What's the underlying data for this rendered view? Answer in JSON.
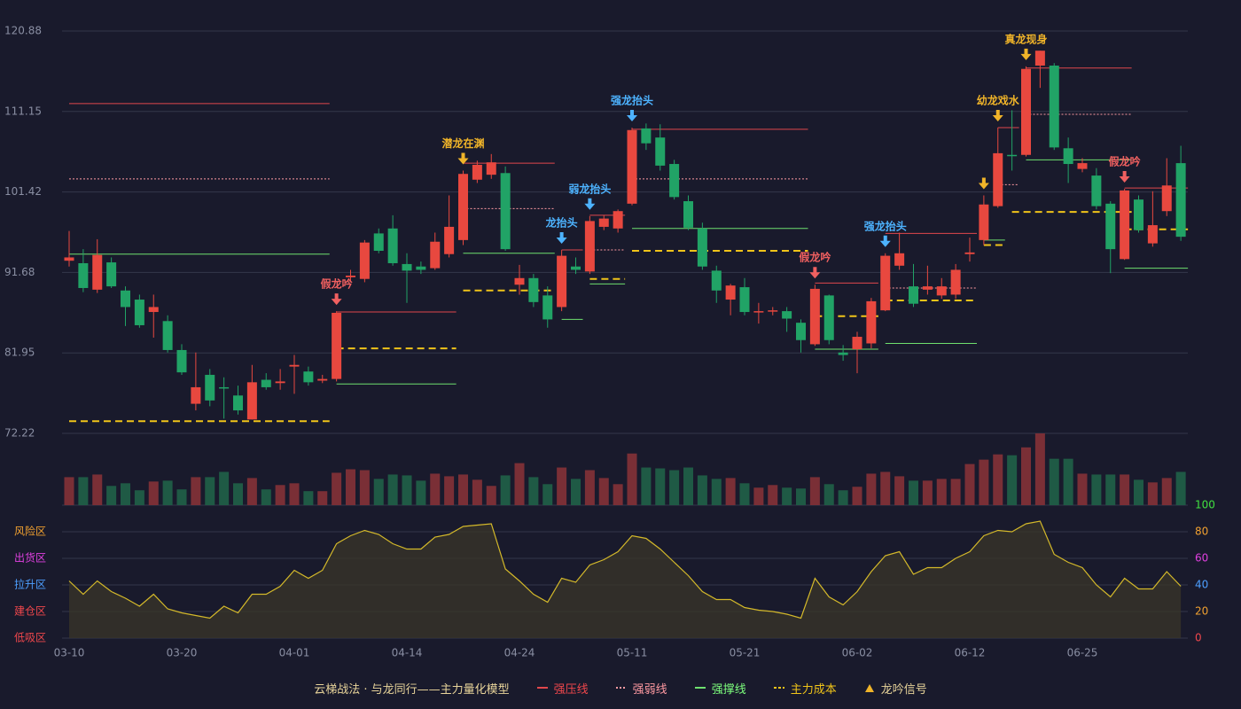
{
  "chart_data": {
    "type": "candlestick",
    "categories": [
      "03-10",
      null,
      null,
      null,
      null,
      null,
      null,
      null,
      "03-20",
      null,
      null,
      null,
      null,
      null,
      null,
      null,
      "04-01",
      null,
      null,
      null,
      null,
      null,
      null,
      null,
      "04-14",
      null,
      null,
      null,
      null,
      null,
      null,
      null,
      "04-24",
      null,
      null,
      null,
      null,
      null,
      null,
      null,
      "05-11",
      null,
      null,
      null,
      null,
      null,
      null,
      null,
      "05-21",
      null,
      null,
      null,
      null,
      null,
      null,
      null,
      "06-02",
      null,
      null,
      null,
      null,
      null,
      null,
      null,
      "06-12",
      null,
      null,
      null,
      null,
      null,
      null,
      null,
      "06-25",
      null,
      null,
      null,
      null,
      null,
      null,
      null
    ],
    "open": [
      93.1,
      92.8,
      89.6,
      92.9,
      89.5,
      88.4,
      86.9,
      85.8,
      82.3,
      75.8,
      79.3,
      77.8,
      76.8,
      73.9,
      78.7,
      78.3,
      80.3,
      79.7,
      78.6,
      78.8,
      91.1,
      90.9,
      96.4,
      97.0,
      92.7,
      92.4,
      92.2,
      93.9,
      95.6,
      102.9,
      103.5,
      103.7,
      90.2,
      91.0,
      88.9,
      87.5,
      92.4,
      91.8,
      97.2,
      97.0,
      100.0,
      109.1,
      108.0,
      104.8,
      100.3,
      97.0,
      91.9,
      88.4,
      89.9,
      86.9,
      87.0,
      87.0,
      85.6,
      83.0,
      88.9,
      82.0,
      82.4,
      83.1,
      87.1,
      92.5,
      90.0,
      89.6,
      88.9,
      89.0,
      93.9,
      95.6,
      99.7,
      105.9,
      105.9,
      116.7,
      116.7,
      106.7,
      104.2,
      103.4,
      100.0,
      93.3,
      100.5,
      95.2,
      99.1,
      104.9
    ],
    "high": [
      96.7,
      94.5,
      95.7,
      93.5,
      90.0,
      89.0,
      89.0,
      86.5,
      83.0,
      82.0,
      80.0,
      79.0,
      78.0,
      80.5,
      79.5,
      80.0,
      81.7,
      80.3,
      79.3,
      87.0,
      92.0,
      95.6,
      97.0,
      98.6,
      94.0,
      93.0,
      96.5,
      101.0,
      104.0,
      105.2,
      106.0,
      104.5,
      92.6,
      91.5,
      90.0,
      94.4,
      93.5,
      98.5,
      98.6,
      99.3,
      109.2,
      109.7,
      109.6,
      105.3,
      101.0,
      97.7,
      92.5,
      90.3,
      91.0,
      88.0,
      87.5,
      87.5,
      86.0,
      90.2,
      89.0,
      82.9,
      84.5,
      88.6,
      94.0,
      96.5,
      92.7,
      92.5,
      91.0,
      92.7,
      95.9,
      101.0,
      109.2,
      111.3,
      116.6,
      118.5,
      117.0,
      108.0,
      105.5,
      104.3,
      100.3,
      101.8,
      101.0,
      101.5,
      105.5,
      107.0
    ],
    "low": [
      92.4,
      89.3,
      89.2,
      89.8,
      85.2,
      85.0,
      83.8,
      82.0,
      79.3,
      75.0,
      75.5,
      74.0,
      74.5,
      73.9,
      77.5,
      77.5,
      77.0,
      78.0,
      78.3,
      78.5,
      90.5,
      90.5,
      94.0,
      92.5,
      88.0,
      91.5,
      92.0,
      93.5,
      95.0,
      102.5,
      103.0,
      94.3,
      89.0,
      87.5,
      85.0,
      87.0,
      91.5,
      91.5,
      96.8,
      96.5,
      99.8,
      106.5,
      104.0,
      100.5,
      96.8,
      92.0,
      88.0,
      86.5,
      86.5,
      85.5,
      86.5,
      84.5,
      82.0,
      82.8,
      83.0,
      81.0,
      79.5,
      82.5,
      87.0,
      92.0,
      87.5,
      89.0,
      88.5,
      88.5,
      93.0,
      95.0,
      99.5,
      104.0,
      105.7,
      114.0,
      106.5,
      102.5,
      103.8,
      99.3,
      91.6,
      93.2,
      96.5,
      94.8,
      98.5,
      95.5
    ],
    "close": [
      93.5,
      89.8,
      93.8,
      90.0,
      87.5,
      85.3,
      87.5,
      82.3,
      79.6,
      77.8,
      76.2,
      77.7,
      75.0,
      78.4,
      77.8,
      78.5,
      80.5,
      78.4,
      78.8,
      86.8,
      91.3,
      95.3,
      94.3,
      92.8,
      91.9,
      92.0,
      95.4,
      97.2,
      103.6,
      104.7,
      105.0,
      94.5,
      91.0,
      88.1,
      86.0,
      93.7,
      92.0,
      97.9,
      98.2,
      99.1,
      108.9,
      107.3,
      104.6,
      100.8,
      97.1,
      92.4,
      89.5,
      90.1,
      86.9,
      87.0,
      87.1,
      86.1,
      83.5,
      89.7,
      83.5,
      81.7,
      83.9,
      88.2,
      93.7,
      94.0,
      87.9,
      90.0,
      90.0,
      92.0,
      94.1,
      99.9,
      106.1,
      105.8,
      116.3,
      118.5,
      106.8,
      104.8,
      104.9,
      99.7,
      94.5,
      101.6,
      96.8,
      97.4,
      102.2,
      96.0
    ],
    "up_color": "#e8483f",
    "down_color": "#21a366",
    "ylim": [
      72.22,
      120.88
    ],
    "yticks": [
      72.22,
      81.95,
      91.68,
      101.42,
      111.15,
      120.88
    ],
    "grid": true,
    "volume": {
      "values": [
        32,
        32,
        35,
        22,
        25,
        17,
        27,
        28,
        18,
        32,
        32,
        38,
        25,
        31,
        18,
        23,
        25,
        16,
        16,
        37,
        41,
        40,
        30,
        35,
        34,
        28,
        36,
        33,
        35,
        29,
        22,
        34,
        48,
        32,
        24,
        43,
        30,
        40,
        31,
        24,
        59,
        43,
        42,
        40,
        43,
        34,
        30,
        31,
        25,
        20,
        23,
        20,
        19,
        32,
        24,
        17,
        21,
        36,
        38,
        33,
        28,
        28,
        30,
        30,
        47,
        52,
        58,
        57,
        66,
        82,
        53,
        53,
        36,
        35,
        35,
        35,
        29,
        26,
        31,
        38
      ],
      "ylim": [
        0,
        82
      ],
      "up_color": "#7a2f36",
      "down_color": "#1f5a45"
    },
    "indicator": {
      "type": "line",
      "color": "#d4b92a",
      "values": [
        43,
        33,
        43,
        35,
        30,
        24,
        33,
        22,
        19,
        17,
        15,
        24,
        19,
        33,
        33,
        39,
        51,
        45,
        51,
        71,
        77,
        81,
        78,
        71,
        67,
        67,
        76,
        78,
        84,
        85,
        86,
        52,
        43,
        33,
        27,
        45,
        42,
        55,
        59,
        65,
        77,
        75,
        67,
        57,
        47,
        35,
        29,
        29,
        23,
        21,
        20,
        18,
        15,
        45,
        31,
        25,
        35,
        50,
        62,
        65,
        48,
        53,
        53,
        60,
        65,
        77,
        81,
        80,
        86,
        88,
        63,
        57,
        53,
        40,
        31,
        45,
        37,
        37,
        50,
        39
      ],
      "ylim": [
        0,
        100
      ],
      "yticks": [
        0,
        20,
        40,
        60,
        80,
        100
      ],
      "ytick_colors": [
        "#f0474c",
        "#f0a030",
        "#4d9fff",
        "#e040e0",
        "#f0a030",
        "#40e040"
      ],
      "zones": [
        {
          "value": 80,
          "label": "风险区",
          "color": "#f0a030"
        },
        {
          "value": 60,
          "label": "出货区",
          "color": "#e040e0"
        },
        {
          "value": 40,
          "label": "拉升区",
          "color": "#4d9fff"
        },
        {
          "value": 20,
          "label": "建仓区",
          "color": "#f0474c"
        },
        {
          "value": 0,
          "label": "低吸区",
          "color": "#f0474c"
        }
      ]
    },
    "signals": [
      {
        "index": 19,
        "label": "假龙吟",
        "color": "#f06060"
      },
      {
        "index": 28,
        "label": "潜龙在渊",
        "color": "#f0b429"
      },
      {
        "index": 35,
        "label": "龙抬头",
        "color": "#4db3ff"
      },
      {
        "index": 37,
        "label": "弱龙抬头",
        "color": "#4db3ff"
      },
      {
        "index": 40,
        "label": "强龙抬头",
        "color": "#4db3ff"
      },
      {
        "index": 53,
        "label": "假龙吟",
        "color": "#f06060"
      },
      {
        "index": 58,
        "label": "强龙抬头",
        "color": "#4db3ff"
      },
      {
        "index": 65,
        "color": "#f0b429"
      },
      {
        "index": 66,
        "label": "幼龙戏水",
        "color": "#f0b429"
      },
      {
        "index": 68,
        "label": "真龙现身",
        "color": "#f0b429"
      },
      {
        "index": 75,
        "label": "假龙吟",
        "color": "#f06060"
      }
    ],
    "level_styles": {
      "pressure": {
        "color": "#e0474c",
        "dash": "none"
      },
      "weak": {
        "color": "#ff9aa2",
        "dash": "2 2"
      },
      "support": {
        "color": "#6ee06e",
        "dash": "none"
      },
      "cost": {
        "color": "#f0c419",
        "dash": "8 5"
      }
    },
    "levels": [
      {
        "kind": "pressure",
        "from": 0,
        "to": 18,
        "value": 112.1
      },
      {
        "kind": "weak",
        "from": 0,
        "to": 18,
        "value": 103.0
      },
      {
        "kind": "support",
        "from": 0,
        "to": 18,
        "value": 93.9
      },
      {
        "kind": "cost",
        "from": 0,
        "to": 18,
        "value": 73.7
      },
      {
        "kind": "pressure",
        "from": 19,
        "to": 27,
        "value": 86.9
      },
      {
        "kind": "support",
        "from": 19,
        "to": 27,
        "value": 78.2
      },
      {
        "kind": "cost",
        "from": 19,
        "to": 27,
        "value": 82.5
      },
      {
        "kind": "pressure",
        "from": 28,
        "to": 34,
        "value": 104.9
      },
      {
        "kind": "weak",
        "from": 28,
        "to": 34,
        "value": 99.4
      },
      {
        "kind": "support",
        "from": 28,
        "to": 34,
        "value": 94.0
      },
      {
        "kind": "cost",
        "from": 28,
        "to": 34,
        "value": 89.5
      },
      {
        "kind": "pressure",
        "from": 35,
        "to": 36,
        "value": 94.4
      },
      {
        "kind": "support",
        "from": 35,
        "to": 36,
        "value": 86.0
      },
      {
        "kind": "pressure",
        "from": 37,
        "to": 39,
        "value": 98.6
      },
      {
        "kind": "weak",
        "from": 37,
        "to": 39,
        "value": 94.4
      },
      {
        "kind": "support",
        "from": 37,
        "to": 39,
        "value": 90.3
      },
      {
        "kind": "cost",
        "from": 37,
        "to": 39,
        "value": 90.9
      },
      {
        "kind": "pressure",
        "from": 40,
        "to": 52,
        "value": 109.0
      },
      {
        "kind": "weak",
        "from": 40,
        "to": 52,
        "value": 103.0
      },
      {
        "kind": "support",
        "from": 40,
        "to": 52,
        "value": 97.0
      },
      {
        "kind": "cost",
        "from": 40,
        "to": 52,
        "value": 94.3
      },
      {
        "kind": "pressure",
        "from": 53,
        "to": 57,
        "value": 90.4
      },
      {
        "kind": "support",
        "from": 53,
        "to": 57,
        "value": 82.4
      },
      {
        "kind": "cost",
        "from": 53,
        "to": 57,
        "value": 86.4
      },
      {
        "kind": "pressure",
        "from": 58,
        "to": 64,
        "value": 96.4
      },
      {
        "kind": "weak",
        "from": 58,
        "to": 64,
        "value": 89.8
      },
      {
        "kind": "support",
        "from": 58,
        "to": 64,
        "value": 83.1
      },
      {
        "kind": "cost",
        "from": 58,
        "to": 64,
        "value": 88.3
      },
      {
        "kind": "support",
        "from": 65,
        "to": 66,
        "value": 95.6
      },
      {
        "kind": "cost",
        "from": 65,
        "to": 66,
        "value": 95.0
      },
      {
        "kind": "pressure",
        "from": 66,
        "to": 67,
        "value": 109.2
      },
      {
        "kind": "weak",
        "from": 66,
        "to": 67,
        "value": 102.3
      },
      {
        "kind": "pressure",
        "from": 68,
        "to": 75,
        "value": 116.4
      },
      {
        "kind": "weak",
        "from": 68,
        "to": 75,
        "value": 110.8
      },
      {
        "kind": "support",
        "from": 68,
        "to": 75,
        "value": 105.3
      },
      {
        "kind": "cost",
        "from": 67,
        "to": 75,
        "value": 99.0
      },
      {
        "kind": "pressure",
        "from": 75,
        "to": 79,
        "value": 101.9
      },
      {
        "kind": "support",
        "from": 75,
        "to": 79,
        "value": 92.2
      },
      {
        "kind": "cost",
        "from": 75,
        "to": 79,
        "value": 96.9
      }
    ],
    "legend_title": "云梯战法 · 与龙同行——主力量化模型",
    "legend_title_color": "#e8d49a",
    "legend": [
      {
        "label": "强压线",
        "kind": "pressure",
        "color": "#f0474c"
      },
      {
        "label": "强弱线",
        "kind": "weak",
        "color": "#ff9aa2"
      },
      {
        "label": "强撑线",
        "kind": "support",
        "color": "#7dff7d"
      },
      {
        "label": "主力成本",
        "kind": "cost",
        "color": "#f0c419"
      },
      {
        "label": "龙吟信号",
        "kind": "signal",
        "color": "#e8d49a"
      }
    ]
  }
}
